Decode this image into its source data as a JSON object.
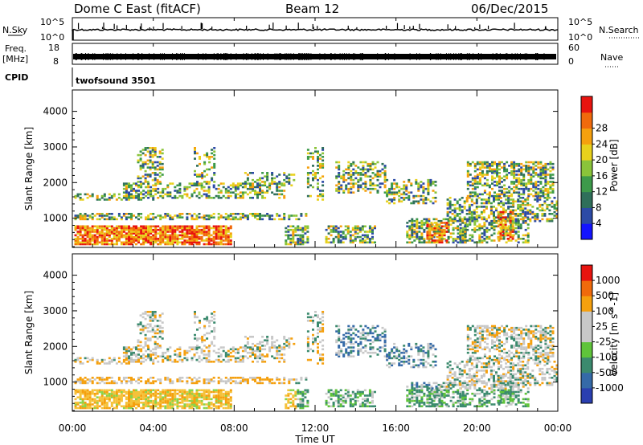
{
  "header": {
    "station": "Dome C East (fitACF)",
    "beam": "Beam 12",
    "date": "06/Dec/2015"
  },
  "strips": {
    "nsky_label": "N.Sky",
    "nsky_ticks": [
      "10^5",
      "10^0"
    ],
    "nsearch_label": "N.Search",
    "nsearch_ticks": [
      "10^5",
      "10^0"
    ],
    "freq_label": "Freq.",
    "freq_unit": "[MHz]",
    "freq_ticks": [
      "18",
      "8"
    ],
    "nave_label": "Nave",
    "nave_ticks": [
      "60",
      "0"
    ],
    "cpid_label": "CPID",
    "cpid_value": "twofsound 3501"
  },
  "chart_data": [
    {
      "type": "heatmap",
      "panel": "power",
      "ylabel": "Slant Range [km]",
      "ylim": [
        180,
        4600
      ],
      "yticks": [
        "1000",
        "2000",
        "3000",
        "4000"
      ],
      "colorbar_label": "Power [dB]",
      "colorbar_ticks": [
        "4",
        "8",
        "12",
        "16",
        "20",
        "24",
        "28"
      ],
      "colorbar_colors": [
        "#1414ff",
        "#2c4aa6",
        "#2f6f5a",
        "#3d9a4a",
        "#8ac43a",
        "#e8d11c",
        "#f5a00e",
        "#f06a0c",
        "#e8140f"
      ],
      "echo_regions_km": [
        {
          "t0": 0.0,
          "t1": 7.5,
          "r0": 300,
          "r1": 700,
          "level": "high"
        },
        {
          "t0": 0.0,
          "t1": 12.0,
          "r0": 1500,
          "r1": 2000,
          "level": "mid"
        },
        {
          "t0": 12.5,
          "t1": 24.0,
          "r0": 900,
          "r1": 2500,
          "level": "mid"
        }
      ]
    },
    {
      "type": "heatmap",
      "panel": "velocity",
      "xlabel": "Time UT",
      "xticks": [
        "00:00",
        "04:00",
        "08:00",
        "12:00",
        "16:00",
        "20:00",
        "00:00"
      ],
      "xlim_hours": [
        0,
        24
      ],
      "ylabel": "Slant Range [km]",
      "ylim": [
        180,
        4600
      ],
      "yticks": [
        "1000",
        "2000",
        "3000",
        "4000"
      ],
      "colorbar_label": "Velocity [m s^-1]",
      "colorbar_ticks": [
        "1000",
        "500",
        "100",
        "25",
        "-25",
        "-100",
        "-500",
        "-1000"
      ],
      "colorbar_colors": [
        "#2a3fb0",
        "#356aa8",
        "#3b8a6e",
        "#5fc43a",
        "#c8c8c8",
        "#c8c8c8",
        "#f5a00e",
        "#f06a0c",
        "#e8140f"
      ]
    }
  ]
}
